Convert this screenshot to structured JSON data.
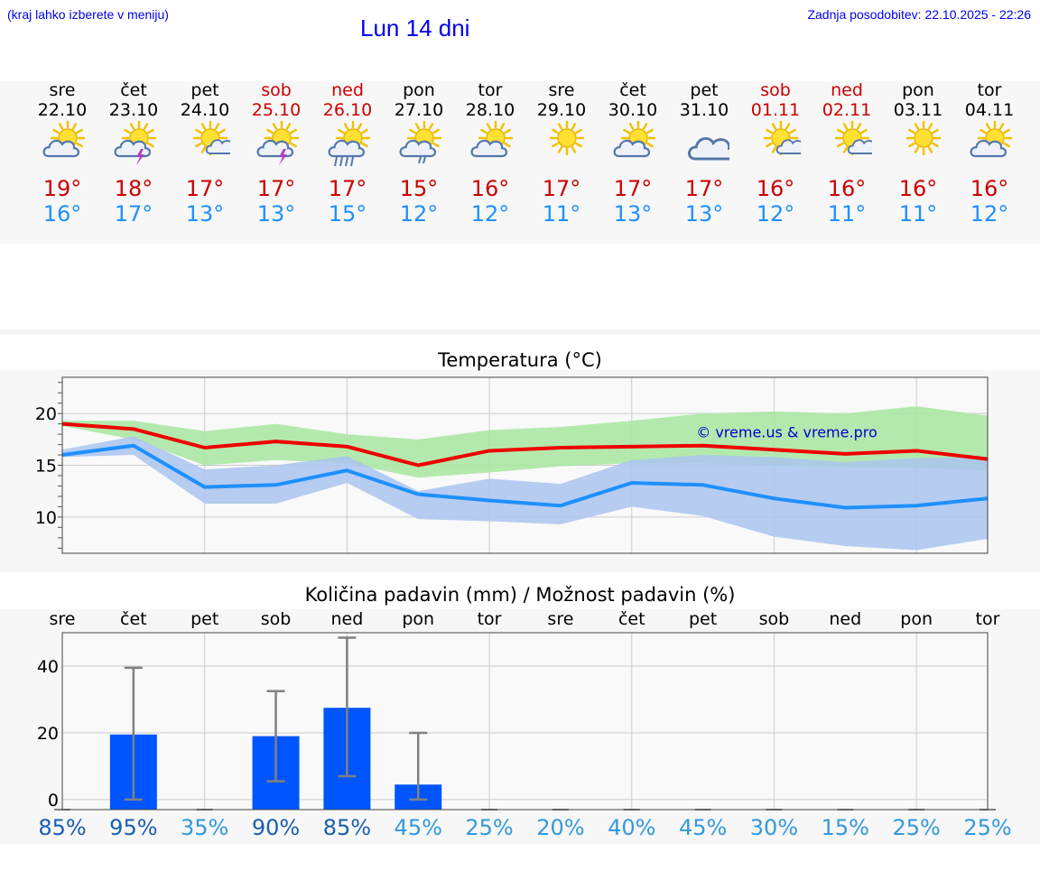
{
  "header": {
    "location_hint": "(kraj lahko izberete v meniju)",
    "title": "Lun 14 dni",
    "updated": "Zadnja posodobitev: 22.10.2025 - 22:26"
  },
  "days": [
    {
      "name": "sre",
      "date": "22.10",
      "weekend": false,
      "icon": "sun-cloud-icon",
      "max": "19°",
      "min": "16°"
    },
    {
      "name": "čet",
      "date": "23.10",
      "weekend": false,
      "icon": "sun-thunder-icon",
      "max": "18°",
      "min": "17°"
    },
    {
      "name": "pet",
      "date": "24.10",
      "weekend": false,
      "icon": "sun-small-cloud-icon",
      "max": "17°",
      "min": "13°"
    },
    {
      "name": "sob",
      "date": "25.10",
      "weekend": true,
      "icon": "sun-thunder-icon",
      "max": "17°",
      "min": "13°"
    },
    {
      "name": "ned",
      "date": "26.10",
      "weekend": true,
      "icon": "sun-cloud-rain-icon",
      "max": "17°",
      "min": "15°"
    },
    {
      "name": "pon",
      "date": "27.10",
      "weekend": false,
      "icon": "sun-cloud-drizzle-icon",
      "max": "15°",
      "min": "12°"
    },
    {
      "name": "tor",
      "date": "28.10",
      "weekend": false,
      "icon": "sun-cloud-icon",
      "max": "16°",
      "min": "12°"
    },
    {
      "name": "sre",
      "date": "29.10",
      "weekend": false,
      "icon": "sun-icon",
      "max": "17°",
      "min": "11°"
    },
    {
      "name": "čet",
      "date": "30.10",
      "weekend": false,
      "icon": "sun-cloud-icon",
      "max": "17°",
      "min": "13°"
    },
    {
      "name": "pet",
      "date": "31.10",
      "weekend": false,
      "icon": "cloud-icon",
      "max": "17°",
      "min": "13°"
    },
    {
      "name": "sob",
      "date": "01.11",
      "weekend": true,
      "icon": "sun-small-cloud-icon",
      "max": "16°",
      "min": "12°"
    },
    {
      "name": "ned",
      "date": "02.11",
      "weekend": true,
      "icon": "sun-small-cloud-icon",
      "max": "16°",
      "min": "11°"
    },
    {
      "name": "pon",
      "date": "03.11",
      "weekend": false,
      "icon": "sun-icon",
      "max": "16°",
      "min": "11°"
    },
    {
      "name": "tor",
      "date": "04.11",
      "weekend": false,
      "icon": "sun-cloud-icon",
      "max": "16°",
      "min": "12°"
    }
  ],
  "chart_data": [
    {
      "type": "line",
      "title": "Temperatura (°C)",
      "watermark": "© vreme.us & vreme.pro",
      "x": [
        0,
        1,
        2,
        3,
        4,
        5,
        6,
        7,
        8,
        9,
        10,
        11,
        12,
        13
      ],
      "ylim": [
        6.5,
        23.5
      ],
      "yticks": [
        10,
        15,
        20
      ],
      "grid": true,
      "series": [
        {
          "role": "max",
          "color": "#ee0000",
          "values": [
            19,
            18.5,
            16.7,
            17.3,
            16.8,
            15,
            16.4,
            16.7,
            16.8,
            16.9,
            16.5,
            16.1,
            16.4,
            15.6
          ],
          "band_low": [
            18.8,
            17.5,
            15,
            15.5,
            15.2,
            13.8,
            14.3,
            14.9,
            15.2,
            15.2,
            15,
            14.8,
            14.8,
            14.5
          ],
          "band_high": [
            19.3,
            19.3,
            18.3,
            19,
            18,
            17.5,
            18.4,
            18.7,
            19.3,
            20,
            20.2,
            20,
            20.7,
            19.8
          ],
          "band_color": "#a8e6a0"
        },
        {
          "role": "min",
          "color": "#1e90ff",
          "values": [
            16,
            16.9,
            12.9,
            13.1,
            14.5,
            12.2,
            11.6,
            11.1,
            13.3,
            13.1,
            11.8,
            10.9,
            11.1,
            11.8
          ],
          "band_low": [
            15.8,
            16,
            11.3,
            11.3,
            13.3,
            9.8,
            9.6,
            9.3,
            11,
            10.1,
            8.1,
            7.2,
            6.8,
            7.9
          ],
          "band_high": [
            16.5,
            17.8,
            14.6,
            15,
            15.9,
            12.5,
            13.7,
            13.2,
            15.5,
            16,
            15.8,
            15.3,
            15.7,
            15.8
          ],
          "band_color": "#aac4f0"
        }
      ]
    },
    {
      "type": "bar",
      "title": "Količina padavin (mm) / Možnost padavin (%)",
      "categories": [
        "sre",
        "čet",
        "pet",
        "sob",
        "ned",
        "pon",
        "tor",
        "sre",
        "čet",
        "pet",
        "sob",
        "ned",
        "pon",
        "tor"
      ],
      "values": [
        0,
        19.5,
        0,
        19,
        27.5,
        4.5,
        0,
        0,
        0,
        0,
        0,
        0,
        0,
        0
      ],
      "err_low": [
        0,
        0,
        0,
        5.5,
        7,
        0,
        0,
        0,
        0,
        0,
        0,
        0,
        0,
        0
      ],
      "err_high": [
        0,
        39.5,
        0,
        32.5,
        48.5,
        20,
        0,
        0,
        0,
        0,
        0,
        0,
        0,
        0
      ],
      "ylim": [
        -3,
        50
      ],
      "yticks": [
        0,
        20,
        40
      ],
      "bar_color": "#0055ff",
      "probability": [
        "85%",
        "95%",
        "35%",
        "90%",
        "85%",
        "45%",
        "25%",
        "20%",
        "40%",
        "45%",
        "30%",
        "15%",
        "25%",
        "25%"
      ],
      "prob_strong": [
        true,
        true,
        false,
        true,
        true,
        false,
        false,
        false,
        false,
        false,
        false,
        false,
        false,
        false
      ],
      "prob_colors": {
        "strong": "#1a5fb0",
        "weak": "#3399dd"
      }
    }
  ]
}
